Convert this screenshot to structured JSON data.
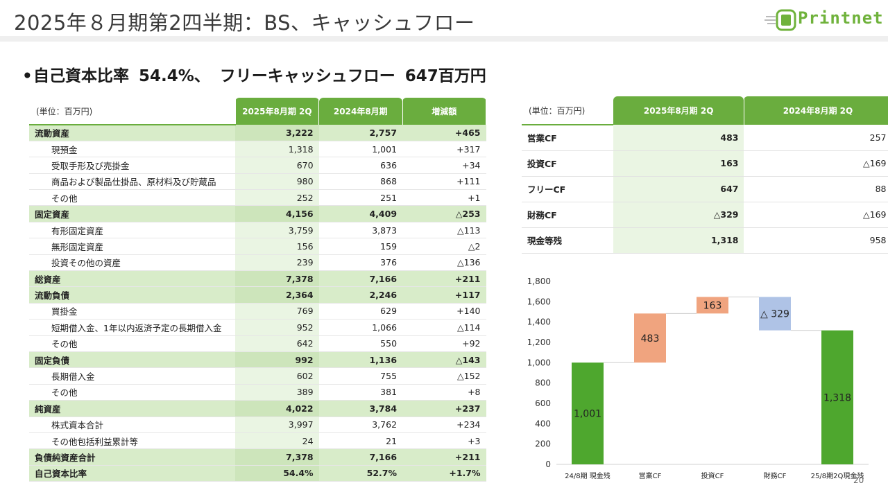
{
  "header": {
    "title": "2025年８月期第2四半期：BS、キャッシュフロー",
    "logo_text": "Printnet"
  },
  "headline": {
    "bullet": "•",
    "part1": "自己資本比率",
    "part2": "54.4%、",
    "part3": "フリーキャッシュフロー",
    "part4": "647百万円"
  },
  "bs_table": {
    "unit": "(単位：百万円)",
    "headers": [
      "2025年8月期 2Q",
      "2024年8月期",
      "増減額"
    ],
    "rows": [
      {
        "label": "流動資産",
        "v1": "3,222",
        "v2": "2,757",
        "diff": "+465",
        "cat": true
      },
      {
        "label": "現預金",
        "v1": "1,318",
        "v2": "1,001",
        "diff": "+317",
        "cat": false
      },
      {
        "label": "受取手形及び売掛金",
        "v1": "670",
        "v2": "636",
        "diff": "+34",
        "cat": false
      },
      {
        "label": "商品および製品仕掛品、原材料及び貯蔵品",
        "v1": "980",
        "v2": "868",
        "diff": "+111",
        "cat": false
      },
      {
        "label": "その他",
        "v1": "252",
        "v2": "251",
        "diff": "+1",
        "cat": false
      },
      {
        "label": "固定資産",
        "v1": "4,156",
        "v2": "4,409",
        "diff": "△253",
        "cat": true
      },
      {
        "label": "有形固定資産",
        "v1": "3,759",
        "v2": "3,873",
        "diff": "△113",
        "cat": false
      },
      {
        "label": "無形固定資産",
        "v1": "156",
        "v2": "159",
        "diff": "△2",
        "cat": false
      },
      {
        "label": "投資その他の資産",
        "v1": "239",
        "v2": "376",
        "diff": "△136",
        "cat": false
      },
      {
        "label": "総資産",
        "v1": "7,378",
        "v2": "7,166",
        "diff": "+211",
        "cat": true
      },
      {
        "label": "流動負債",
        "v1": "2,364",
        "v2": "2,246",
        "diff": "+117",
        "cat": true
      },
      {
        "label": "買掛金",
        "v1": "769",
        "v2": "629",
        "diff": "+140",
        "cat": false
      },
      {
        "label": "短期借入金、1年以内返済予定の長期借入金",
        "v1": "952",
        "v2": "1,066",
        "diff": "△114",
        "cat": false
      },
      {
        "label": "その他",
        "v1": "642",
        "v2": "550",
        "diff": "+92",
        "cat": false
      },
      {
        "label": "固定負債",
        "v1": "992",
        "v2": "1,136",
        "diff": "△143",
        "cat": true
      },
      {
        "label": "長期借入金",
        "v1": "602",
        "v2": "755",
        "diff": "△152",
        "cat": false
      },
      {
        "label": "その他",
        "v1": "389",
        "v2": "381",
        "diff": "+8",
        "cat": false
      },
      {
        "label": "純資産",
        "v1": "4,022",
        "v2": "3,784",
        "diff": "+237",
        "cat": true
      },
      {
        "label": "株式資本合計",
        "v1": "3,997",
        "v2": "3,762",
        "diff": "+234",
        "cat": false
      },
      {
        "label": "その他包括利益累計等",
        "v1": "24",
        "v2": "21",
        "diff": "+3",
        "cat": false
      },
      {
        "label": "負債純資産合計",
        "v1": "7,378",
        "v2": "7,166",
        "diff": "+211",
        "cat": true
      },
      {
        "label": "自己資本比率",
        "v1": "54.4%",
        "v2": "52.7%",
        "diff": "+1.7%",
        "cat": true
      }
    ]
  },
  "cf_table": {
    "unit": "(単位：百万円)",
    "headers": [
      "2025年8月期 2Q",
      "2024年8月期 2Q"
    ],
    "rows": [
      {
        "label": "営業CF",
        "v1": "483",
        "v2": "257"
      },
      {
        "label": "投資CF",
        "v1": "163",
        "v2": "△169"
      },
      {
        "label": "フリーCF",
        "v1": "647",
        "v2": "88"
      },
      {
        "label": "財務CF",
        "v1": "△329",
        "v2": "△169"
      },
      {
        "label": "現金等残",
        "v1": "1,318",
        "v2": "958"
      }
    ]
  },
  "chart_data": {
    "type": "bar",
    "subtype": "waterfall",
    "categories": [
      "24/8期 現金残",
      "営業CF",
      "投資CF",
      "財務CF",
      "25/8期2Q現金残"
    ],
    "bars": [
      {
        "category": "24/8期 現金残",
        "start": 0,
        "end": 1001,
        "label": "1,001",
        "kind": "total",
        "color": "#4ea72e"
      },
      {
        "category": "営業CF",
        "start": 1001,
        "end": 1484,
        "label": "483",
        "kind": "increase",
        "color": "#f0a47f"
      },
      {
        "category": "投資CF",
        "start": 1484,
        "end": 1647,
        "label": "163",
        "kind": "increase",
        "color": "#f0a47f"
      },
      {
        "category": "財務CF",
        "start": 1647,
        "end": 1318,
        "label": "△ 329",
        "kind": "decrease",
        "color": "#afc3e6"
      },
      {
        "category": "25/8期2Q現金残",
        "start": 0,
        "end": 1318,
        "label": "1,318",
        "kind": "total",
        "color": "#4ea72e"
      }
    ],
    "yticks": [
      "0",
      "200",
      "400",
      "600",
      "800",
      "1,000",
      "1,200",
      "1,400",
      "1,600",
      "1,800"
    ],
    "ylim": [
      0,
      1800
    ],
    "grid": false
  },
  "page_number": "20"
}
